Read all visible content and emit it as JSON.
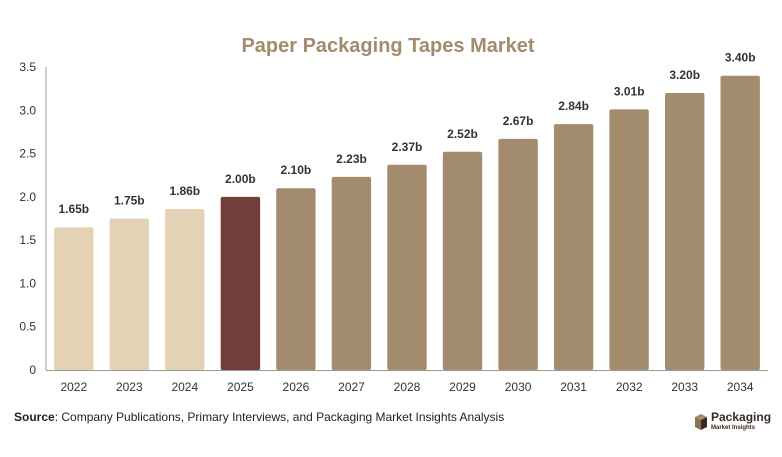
{
  "chart_data": {
    "type": "bar",
    "title": "Paper Packaging Tapes Market",
    "categories": [
      "2022",
      "2023",
      "2024",
      "2025",
      "2026",
      "2027",
      "2028",
      "2029",
      "2030",
      "2031",
      "2032",
      "2033",
      "2034"
    ],
    "values": [
      1.65,
      1.75,
      1.86,
      2.0,
      2.1,
      2.23,
      2.37,
      2.52,
      2.67,
      2.84,
      3.01,
      3.2,
      3.4
    ],
    "data_labels": [
      "1.65b",
      "1.75b",
      "1.86b",
      "2.00b",
      "2.10b",
      "2.23b",
      "2.37b",
      "2.52b",
      "2.67b",
      "2.84b",
      "3.01b",
      "3.20b",
      "3.40b"
    ],
    "y_ticks": [
      "0",
      "0.5",
      "1.0",
      "1.5",
      "2.0",
      "2.5",
      "3.0",
      "3.5"
    ],
    "ylim": [
      0,
      3.5
    ],
    "xlabel": "",
    "ylabel": "",
    "grid": false,
    "colors": {
      "historical": "#e3d3b4",
      "current": "#723d3b",
      "forecast": "#a38b6d",
      "title": "#a38b6d"
    },
    "bar_color_groups": [
      "historical",
      "historical",
      "historical",
      "current",
      "forecast",
      "forecast",
      "forecast",
      "forecast",
      "forecast",
      "forecast",
      "forecast",
      "forecast",
      "forecast"
    ]
  },
  "footer": {
    "source_label": "Source",
    "source_text": ": Company Publications, Primary Interviews, and Packaging Market Insights Analysis"
  },
  "logo": {
    "name": "Packaging",
    "subtitle": "Market Insights",
    "icon": "package-box-icon"
  }
}
